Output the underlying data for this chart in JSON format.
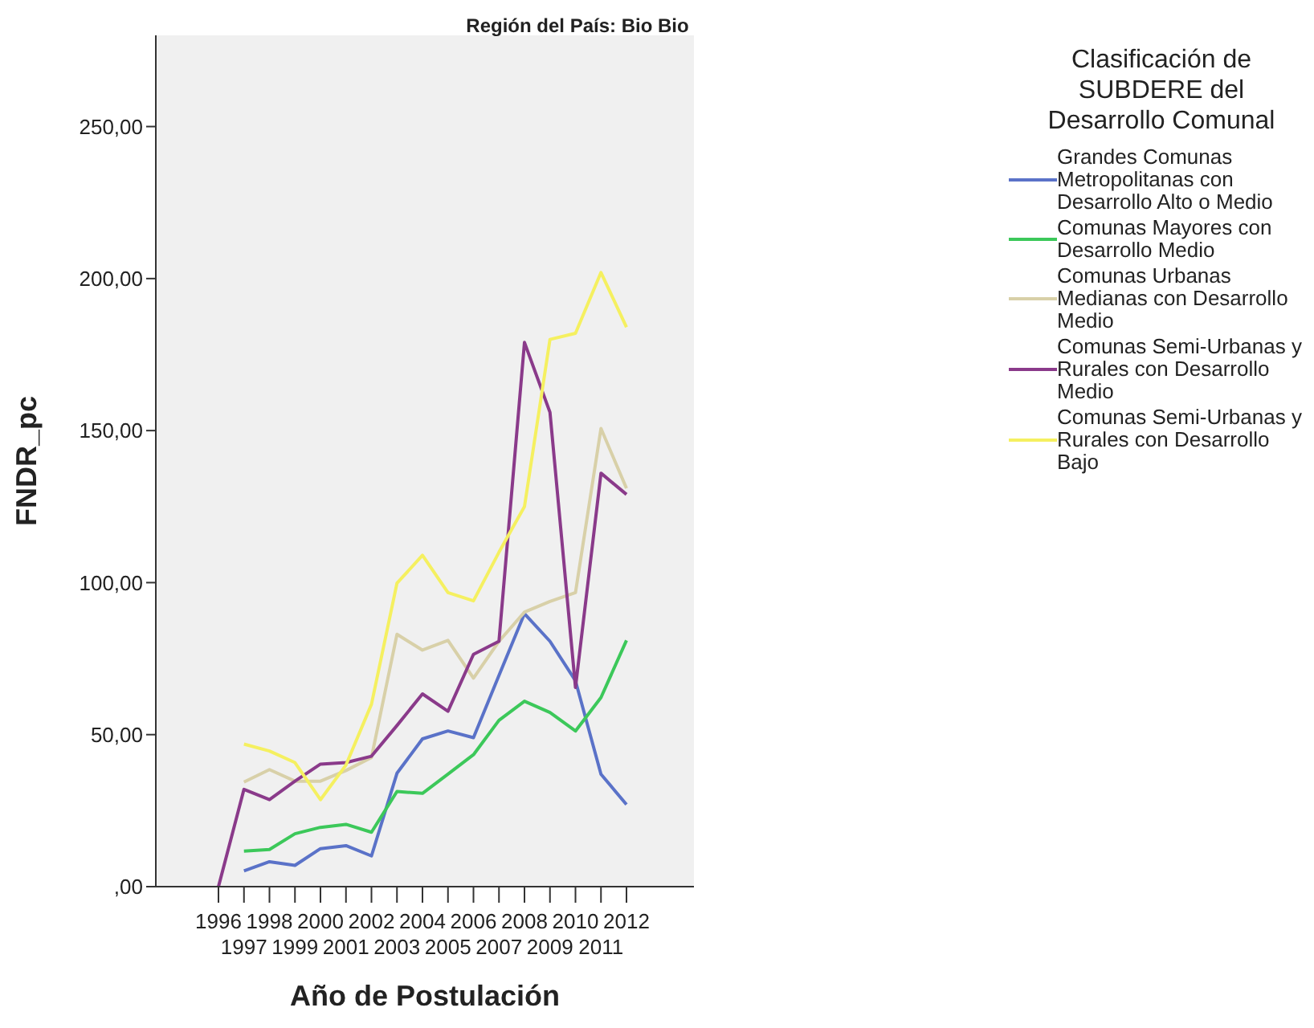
{
  "chart_data": {
    "type": "line",
    "title": "Región del País: Bio Bio",
    "xlabel": "Año de Postulación",
    "ylabel": "FNDR_pc",
    "legend_title": "Clasificación de SUBDERE del Desarrollo Comunal",
    "legend": "right",
    "grid": false,
    "categories": [
      "1996",
      "1997",
      "1998",
      "1999",
      "2000",
      "2001",
      "2002",
      "2003",
      "2004",
      "2005",
      "2006",
      "2007",
      "2008",
      "2009",
      "2010",
      "2011",
      "2012"
    ],
    "ylim": [
      0,
      280
    ],
    "yticks": [
      {
        "value": 0,
        "label": ",00"
      },
      {
        "value": 50,
        "label": "50,00"
      },
      {
        "value": 100,
        "label": "100,00"
      },
      {
        "value": 150,
        "label": "150,00"
      },
      {
        "value": 200,
        "label": "200,00"
      },
      {
        "value": 250,
        "label": "250,00"
      }
    ],
    "series": [
      {
        "name": "Grandes Comunas Metropolitanas con Desarrollo Alto o Medio",
        "color": "#5a72c8",
        "values": [
          null,
          5.2,
          8.2,
          7,
          12.5,
          13.5,
          10.1,
          37.3,
          48.6,
          51.2,
          49,
          69.5,
          89.8,
          80.7,
          67.7,
          37,
          27
        ]
      },
      {
        "name": "Comunas Mayores con Desarrollo Medio",
        "color": "#3cc85a",
        "values": [
          null,
          11.7,
          12.2,
          17.4,
          19.5,
          20.5,
          17.9,
          31.3,
          30.7,
          37,
          43.4,
          54.7,
          61,
          57.3,
          51.2,
          62.2,
          81
        ]
      },
      {
        "name": "Comunas Urbanas Medianas con Desarrollo Medio",
        "color": "#d8d0a8",
        "values": [
          null,
          34.4,
          38.5,
          34.7,
          34.7,
          38.2,
          42.5,
          83,
          77.8,
          81,
          68.6,
          80.7,
          90.3,
          93.8,
          96.7,
          150.7,
          131
        ]
      },
      {
        "name": "Comunas Semi-Urbanas y Rurales con Desarrollo Medio",
        "color": "#8a3a8a",
        "values": [
          0,
          32,
          28.6,
          34.7,
          40.3,
          40.8,
          42.9,
          53,
          63.4,
          57.7,
          76.4,
          80.7,
          179,
          156,
          65.5,
          136,
          129
        ]
      },
      {
        "name": "Comunas Semi-Urbanas y Rurales con Desarrollo Bajo",
        "color": "#f5f060",
        "values": [
          null,
          46.9,
          44.6,
          40.8,
          28.6,
          40,
          60,
          99.8,
          109,
          96.7,
          94,
          110,
          125,
          180,
          182,
          202,
          184
        ]
      }
    ]
  }
}
